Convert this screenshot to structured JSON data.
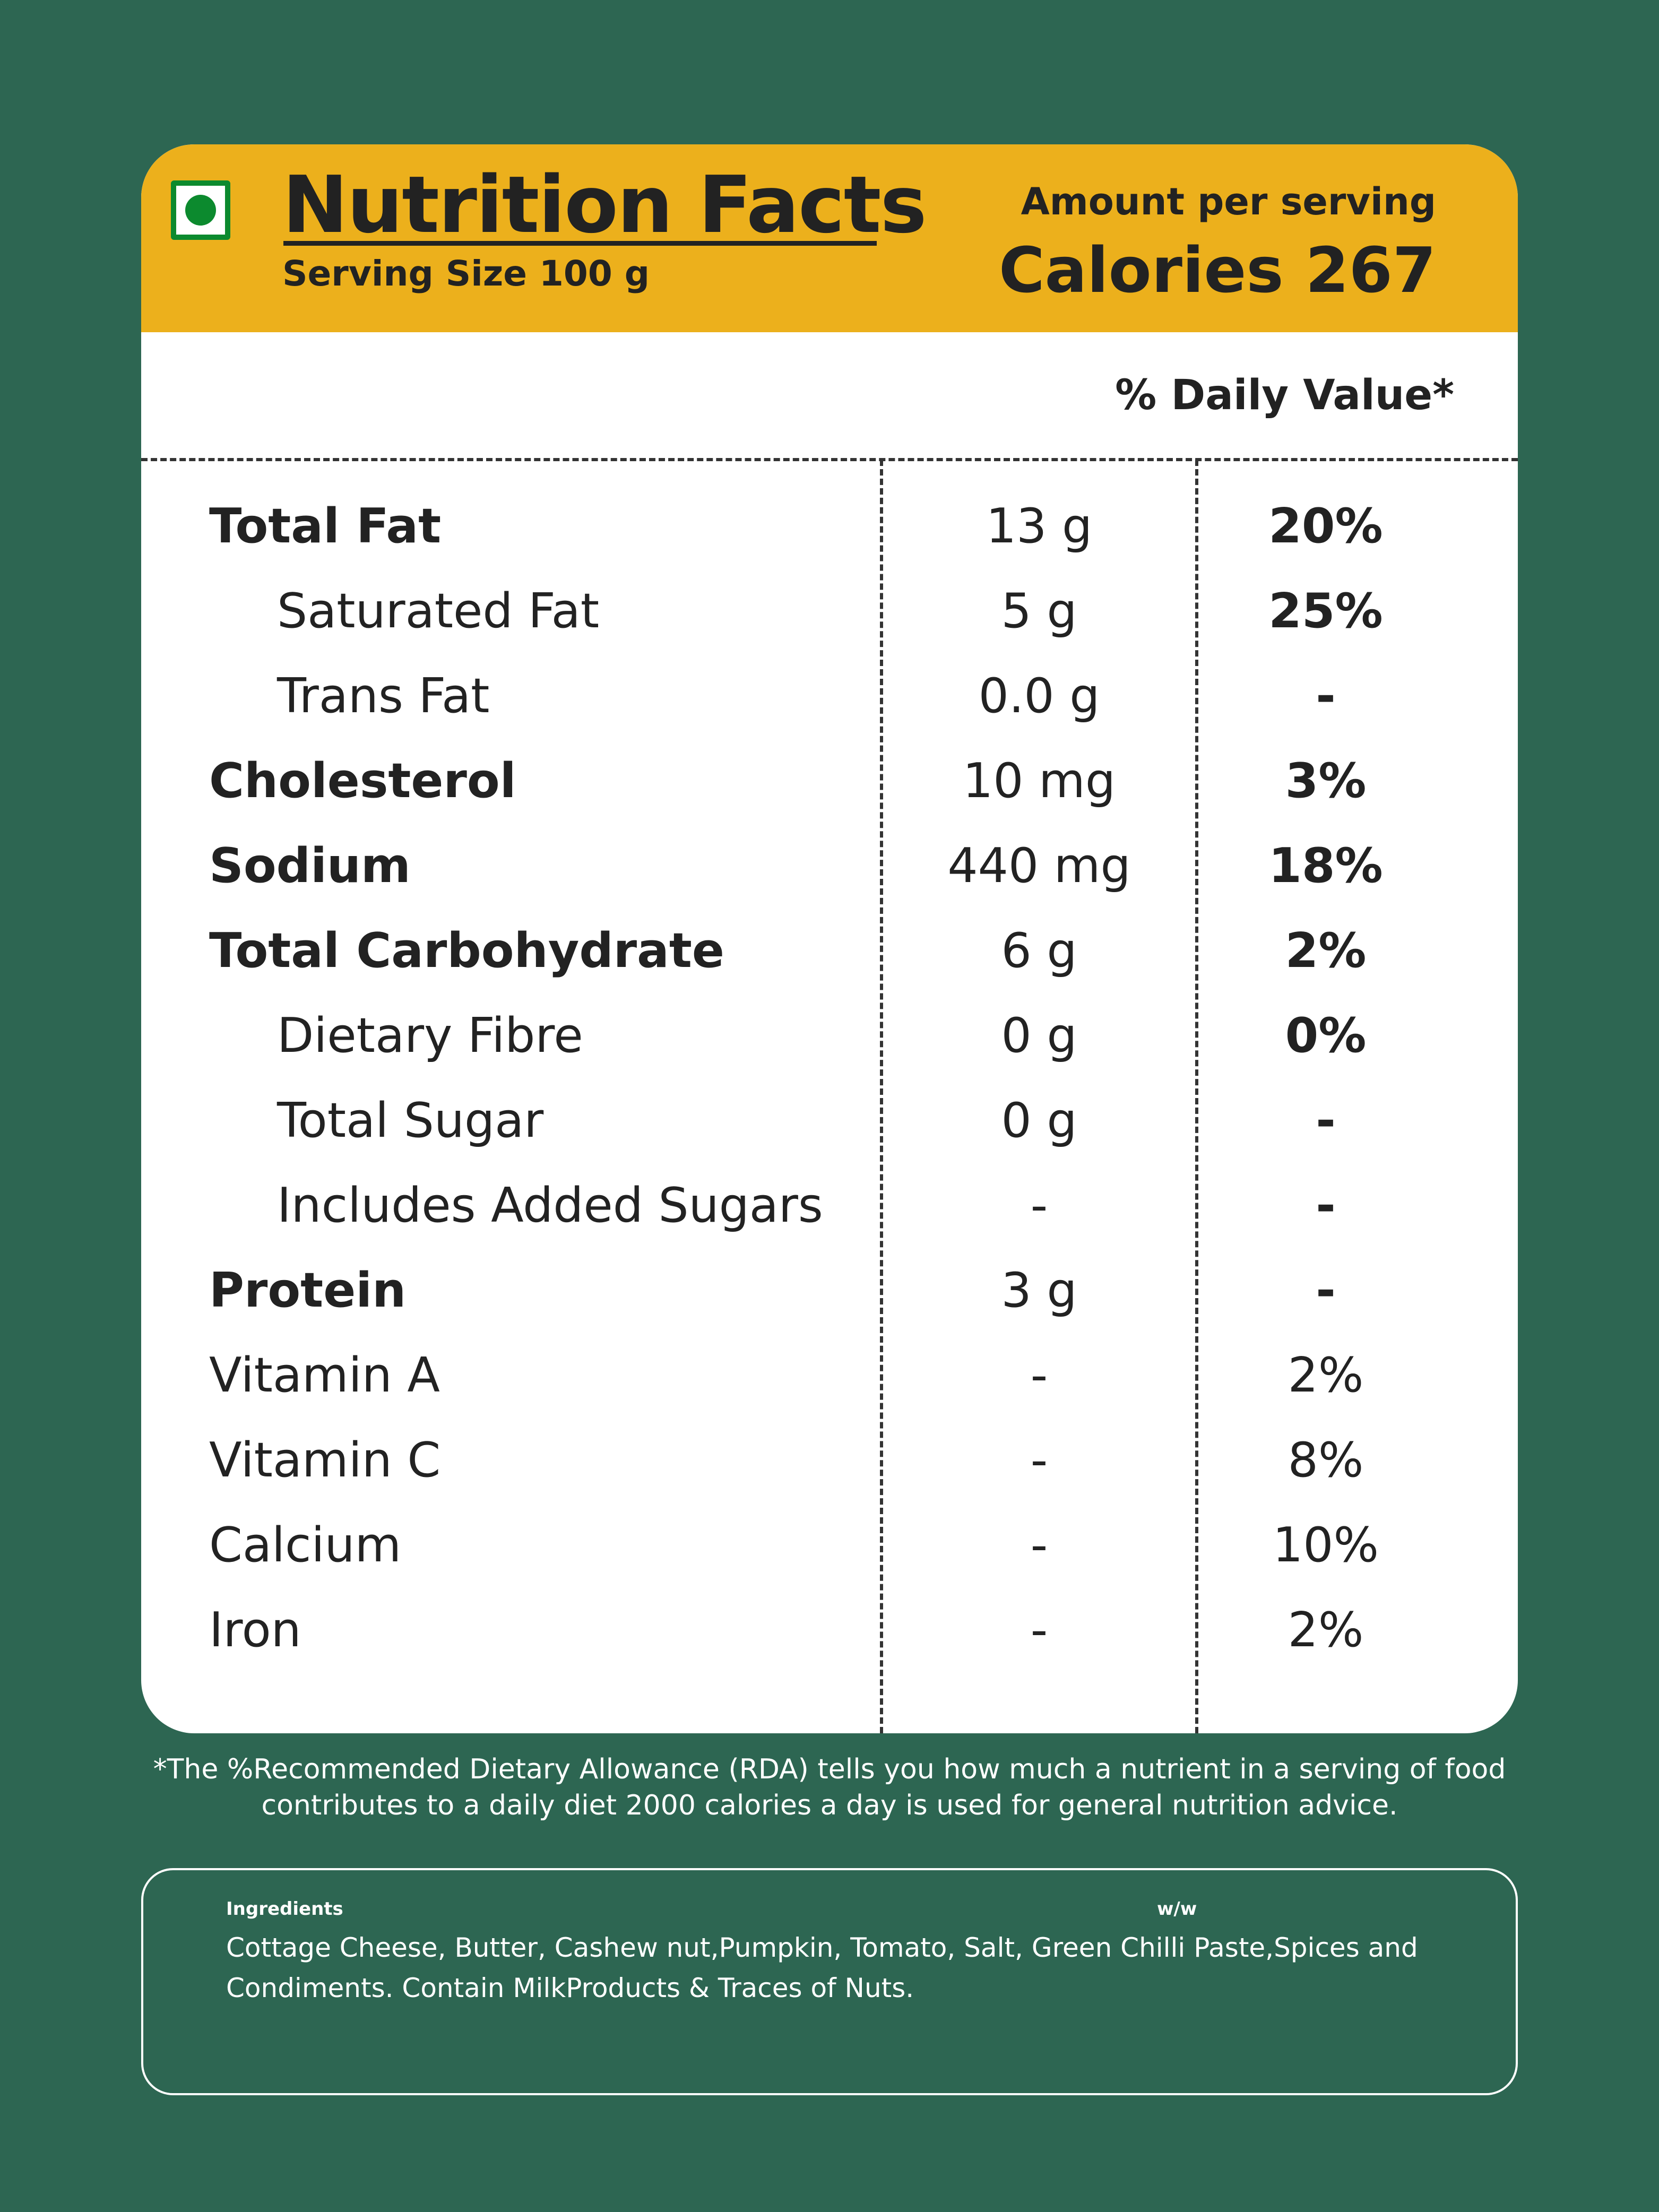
{
  "header": {
    "title": "Nutrition Facts",
    "serving_size": "Serving Size  100 g",
    "amount_label": "Amount per serving",
    "calories": "Calories 267",
    "veg_mark_icon": "vegetarian-mark-icon",
    "background_color": "#ecb01c"
  },
  "table": {
    "daily_value_header": "% Daily Value*",
    "rows": [
      {
        "name": "Total Fat",
        "amount": "13 g",
        "dv": "20%"
      },
      {
        "name": "Saturated Fat",
        "amount": "5 g",
        "dv": "25%"
      },
      {
        "name": "Trans Fat",
        "amount": "0.0 g",
        "dv": "-"
      },
      {
        "name": "Cholesterol",
        "amount": "10 mg",
        "dv": "3%"
      },
      {
        "name": "Sodium",
        "amount": "440 mg",
        "dv": "18%"
      },
      {
        "name": "Total Carbohydrate",
        "amount": "6 g",
        "dv": "2%"
      },
      {
        "name": "Dietary Fibre",
        "amount": "0 g",
        "dv": "0%"
      },
      {
        "name": "Total Sugar",
        "amount": "0 g",
        "dv": "-"
      },
      {
        "name": "Includes Added Sugars",
        "amount": "-",
        "dv": "-"
      },
      {
        "name": "Protein",
        "amount": "3 g",
        "dv": "-"
      },
      {
        "name": "Vitamin A",
        "amount": "-",
        "dv": "2%"
      },
      {
        "name": "Vitamin C",
        "amount": "-",
        "dv": "8%"
      },
      {
        "name": "Calcium",
        "amount": "-",
        "dv": "10%"
      },
      {
        "name": "Iron",
        "amount": "-",
        "dv": "2%"
      }
    ]
  },
  "footnote": {
    "line1": "*The %Recommended Dietary Allowance (RDA) tells you how much a nutrient in a serving of food",
    "line2": "contributes to a daily diet 2000 calories a day is used for general nutrition advice."
  },
  "ingredients": {
    "label": "Ingredients",
    "ww": "w/w",
    "line1": "Cottage Cheese, Butter, Cashew nut,Pumpkin, Tomato, Salt, Green Chilli Paste,Spices and",
    "line2": "Condiments. Contain MilkProducts & Traces of Nuts."
  },
  "colors": {
    "background": "#2d6652",
    "header": "#ecb01c",
    "veg_mark": "#0c8a2e"
  }
}
